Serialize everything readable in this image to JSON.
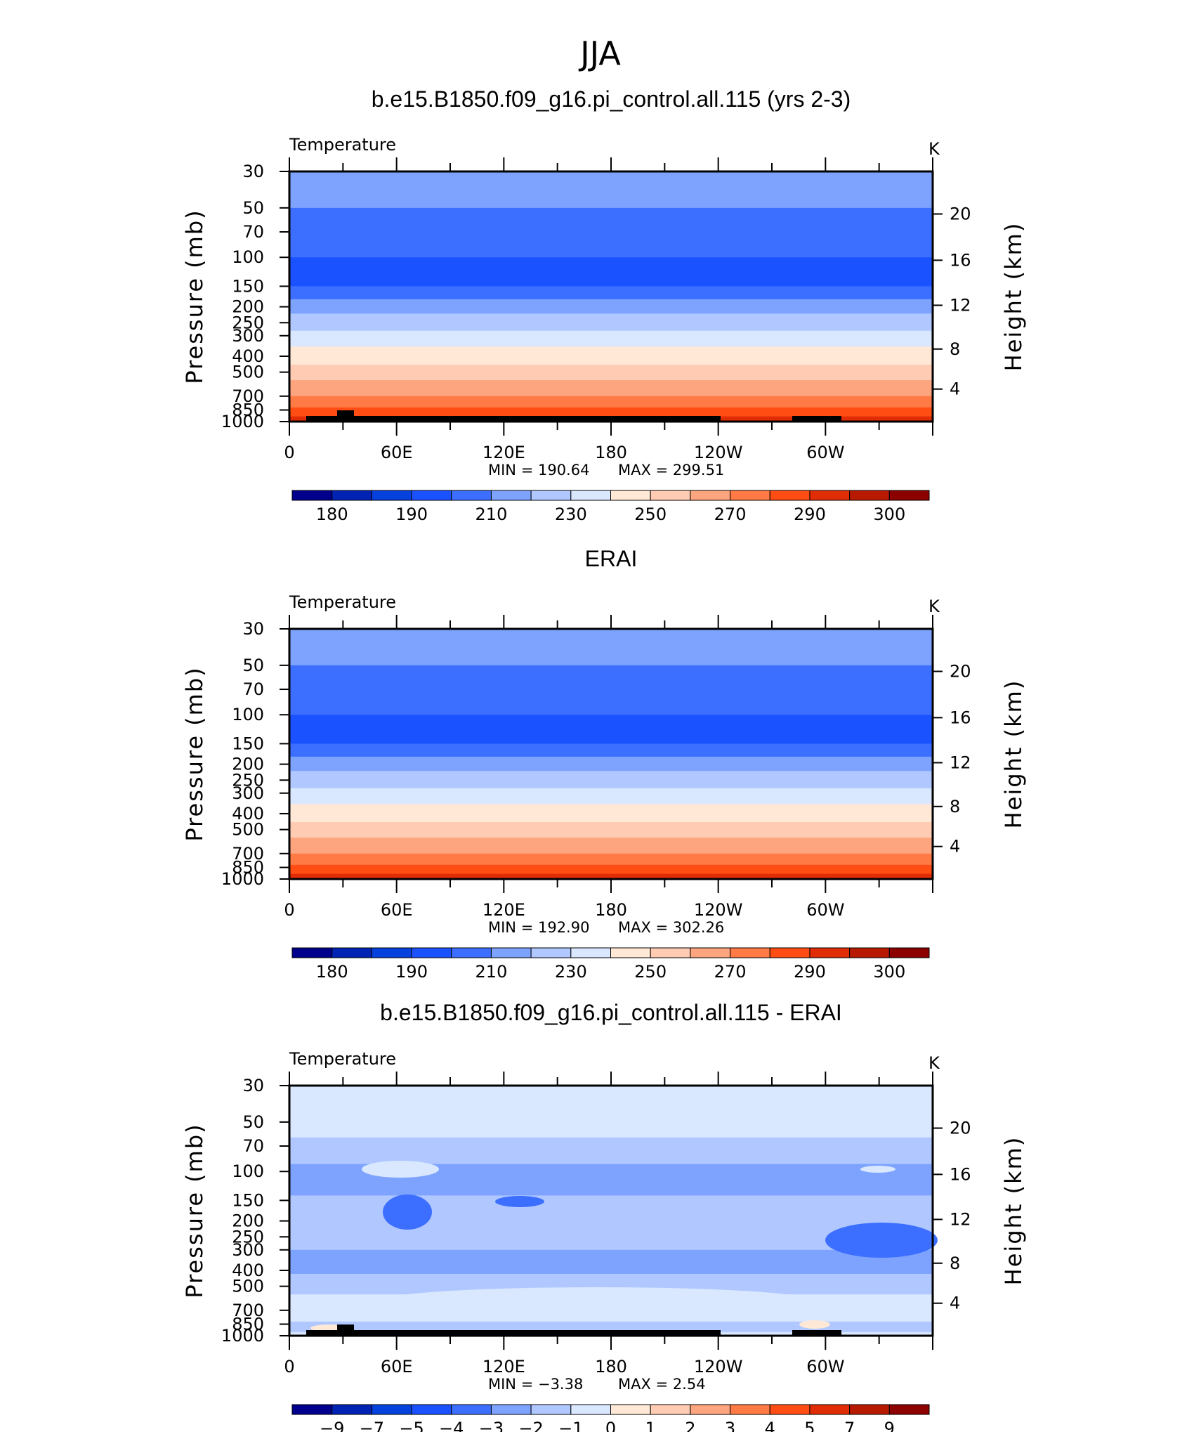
{
  "figure": {
    "title": "JJA"
  },
  "chart_data": [
    {
      "type": "heatmap",
      "title": "b.e15.B1850.f09_g16.pi_control.all.115 (yrs 2-3)",
      "variable": "Temperature",
      "units": "K",
      "ylabel": "Pressure (mb)",
      "ylabel2": "Height (km)",
      "xticklabels": [
        "0",
        "60E",
        "120E",
        "180",
        "120W",
        "60W"
      ],
      "yticklabels": [
        "30",
        "50",
        "70",
        "100",
        "150",
        "200",
        "250",
        "300",
        "400",
        "500",
        "700",
        "850",
        "1000"
      ],
      "y2ticklabels": [
        "20",
        "16",
        "12",
        "8",
        "4"
      ],
      "min_label": "MIN  =  190.64",
      "max_label": "MAX  =  299.51",
      "colorbar_labels": [
        "180",
        "190",
        "210",
        "230",
        "250",
        "270",
        "290",
        "300"
      ],
      "bands_top_to_bottom": [
        215,
        210,
        200,
        195,
        210,
        215,
        220,
        230,
        240,
        250,
        260,
        270,
        280,
        290
      ]
    },
    {
      "type": "heatmap",
      "title": "ERAI",
      "variable": "Temperature",
      "units": "K",
      "ylabel": "Pressure (mb)",
      "ylabel2": "Height (km)",
      "xticklabels": [
        "0",
        "60E",
        "120E",
        "180",
        "120W",
        "60W"
      ],
      "yticklabels": [
        "30",
        "50",
        "70",
        "100",
        "150",
        "200",
        "250",
        "300",
        "400",
        "500",
        "700",
        "850",
        "1000"
      ],
      "y2ticklabels": [
        "20",
        "16",
        "12",
        "8",
        "4"
      ],
      "min_label": "MIN  =  192.90",
      "max_label": "MAX  =  302.26",
      "colorbar_labels": [
        "180",
        "190",
        "210",
        "230",
        "250",
        "270",
        "290",
        "300"
      ],
      "bands_top_to_bottom": [
        215,
        210,
        200,
        195,
        210,
        215,
        220,
        230,
        240,
        250,
        260,
        270,
        280,
        290
      ]
    },
    {
      "type": "heatmap",
      "title": "b.e15.B1850.f09_g16.pi_control.all.115 - ERAI",
      "variable": "Temperature",
      "units": "K",
      "ylabel": "Pressure (mb)",
      "ylabel2": "Height (km)",
      "xticklabels": [
        "0",
        "60E",
        "120E",
        "180",
        "120W",
        "60W"
      ],
      "yticklabels": [
        "30",
        "50",
        "70",
        "100",
        "150",
        "200",
        "250",
        "300",
        "400",
        "500",
        "700",
        "850",
        "1000"
      ],
      "y2ticklabels": [
        "20",
        "16",
        "12",
        "8",
        "4"
      ],
      "min_label": "MIN  =   −3.38",
      "max_label": "MAX  =      2.54",
      "colorbar_labels": [
        "−9",
        "−7",
        "−5",
        "−4",
        "−3",
        "−2",
        "−1",
        "0",
        "1",
        "2",
        "3",
        "4",
        "5",
        "7",
        "9"
      ],
      "bands_top_to_bottom": [
        -0.5,
        -1.5,
        -2.5,
        -1.5,
        -2.5,
        -1.5,
        -0.5,
        -1.5,
        -0.5
      ]
    }
  ],
  "colors": {
    "colorbar": [
      "#00008c",
      "#0023b4",
      "#0541dc",
      "#1b52ff",
      "#3c6fff",
      "#7da3ff",
      "#b0c8ff",
      "#d9e7ff",
      "#ffe9d6",
      "#ffccb3",
      "#fca57f",
      "#ff7a45",
      "#ff4d14",
      "#e02d05",
      "#b81a00",
      "#8c0000"
    ],
    "land": "#000000"
  }
}
